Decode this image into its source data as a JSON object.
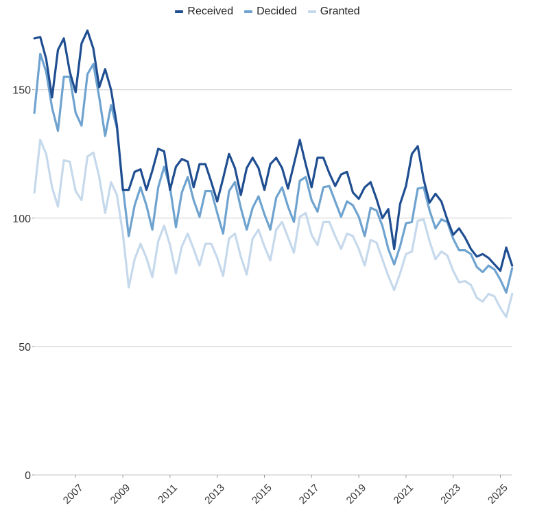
{
  "chart_data": {
    "type": "line",
    "title": "",
    "xlabel": "",
    "ylabel": "",
    "ylim": [
      0,
      175
    ],
    "xlim": [
      2005.25,
      2025.5
    ],
    "grid": true,
    "legend_position": "top-center",
    "yticks": [
      0,
      50,
      100,
      150
    ],
    "ytick_labels": [
      "0",
      "50",
      "100",
      "150"
    ],
    "xticks": [
      2007,
      2009,
      2011,
      2013,
      2015,
      2017,
      2019,
      2021,
      2023,
      2025
    ],
    "xtick_labels": [
      "2007",
      "2009",
      "2011",
      "2013",
      "2015",
      "2017",
      "2019",
      "2021",
      "2023",
      "2025"
    ],
    "x_start": 2005.25,
    "x_step": 0.25,
    "series": [
      {
        "name": "Received",
        "color": "#1f4e91",
        "values": [
          170,
          170.5,
          162,
          147,
          165.5,
          170,
          157,
          149,
          168,
          173,
          166,
          151,
          158,
          150,
          136,
          111,
          111,
          118,
          119,
          111,
          118.5,
          127,
          126,
          111,
          120,
          123,
          122,
          112,
          121,
          121,
          114,
          106.5,
          115.5,
          125,
          119.5,
          109,
          119.5,
          123.5,
          119.5,
          111,
          121,
          123.5,
          119.5,
          111.5,
          121,
          130.5,
          121,
          112,
          123.5,
          123.5,
          117.5,
          112.5,
          117,
          118,
          110,
          107.5,
          112,
          114,
          107.5,
          100,
          103.5,
          88,
          105.5,
          112.5,
          125,
          128,
          115,
          106,
          109.5,
          106.5,
          99.5,
          93.5,
          96,
          92.5,
          88,
          85,
          86,
          84.5,
          82,
          79.5,
          88.5,
          81.5
        ]
      },
      {
        "name": "Decided",
        "color": "#6fa3cf",
        "values": [
          141,
          164,
          157,
          143,
          134,
          155,
          155,
          141,
          136,
          156,
          160,
          147,
          132,
          144,
          135,
          112,
          93,
          105,
          112,
          105,
          95.5,
          112,
          120,
          112,
          96.5,
          110,
          116,
          107,
          100.5,
          110.5,
          110.5,
          102,
          94,
          110.5,
          114,
          104,
          95.5,
          104,
          108.5,
          101.5,
          95.5,
          108,
          112,
          104.5,
          98.5,
          114.5,
          116,
          107,
          102.5,
          112,
          112.5,
          106.5,
          100.5,
          106.5,
          105,
          100.5,
          93,
          104,
          103,
          97,
          88,
          82,
          89,
          98,
          98.5,
          111.5,
          112,
          103,
          96,
          99.5,
          98.5,
          92,
          87.5,
          87.5,
          86,
          81,
          79,
          81.5,
          80,
          76,
          71,
          80.5
        ]
      },
      {
        "name": "Granted",
        "color": "#c6d9ec",
        "values": [
          110,
          130.5,
          125,
          112,
          104.5,
          122.5,
          122,
          110.5,
          107,
          124,
          125.5,
          116,
          102,
          114,
          109,
          94,
          73,
          84,
          90,
          84.5,
          77,
          91,
          97,
          89.5,
          78.5,
          89,
          94,
          88,
          81.5,
          90,
          90,
          84.5,
          77.5,
          92,
          94,
          85,
          78,
          92,
          95.5,
          89,
          83.5,
          95.5,
          98.5,
          92.5,
          86.5,
          100.5,
          102,
          93.5,
          89.5,
          98.5,
          98.5,
          93,
          88,
          94,
          93,
          88,
          81.5,
          91.5,
          90.5,
          84,
          77.5,
          72,
          78.5,
          86,
          87,
          99,
          99.5,
          91,
          84,
          87,
          85.5,
          79.5,
          75,
          75.5,
          74,
          69,
          67.5,
          70.5,
          69.5,
          65,
          61.5,
          70.5
        ]
      }
    ]
  }
}
